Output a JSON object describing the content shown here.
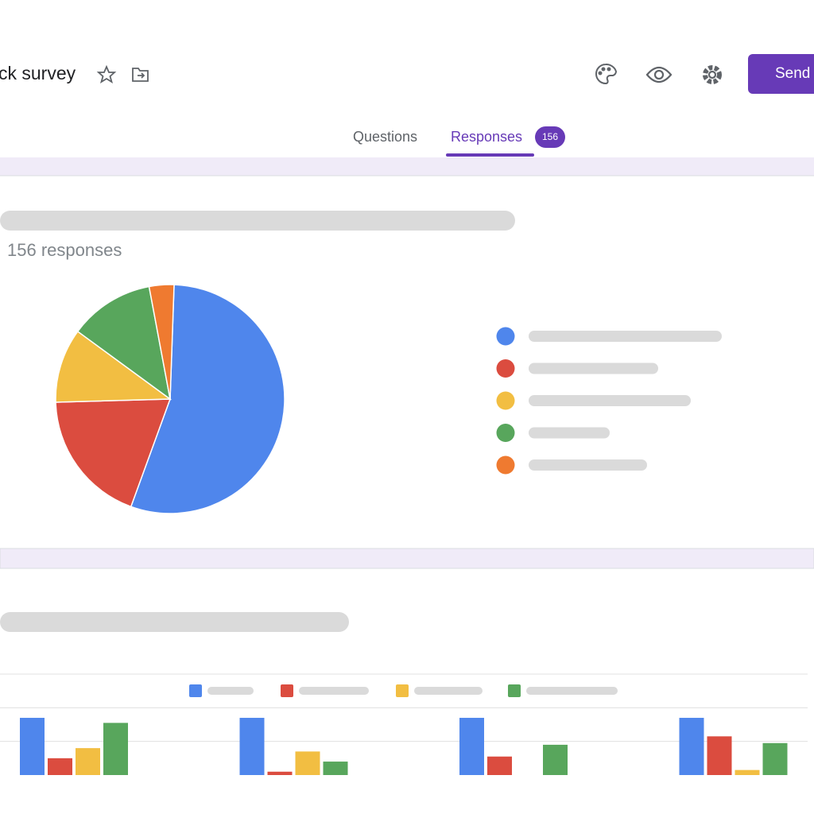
{
  "header": {
    "title": "ck survey",
    "send": "Send"
  },
  "tabs": {
    "questions": "Questions",
    "responses": "Responses",
    "badge": "156"
  },
  "summary": "156 responses",
  "chart_data": [
    {
      "type": "pie",
      "values": [
        55,
        19,
        10.5,
        12,
        3.5
      ],
      "colors": [
        "#4f86ec",
        "#db4c3f",
        "#f2be42",
        "#58a65c",
        "#ef7a30"
      ]
    },
    {
      "type": "bar",
      "categories": [
        null,
        null,
        null,
        null
      ],
      "series": [
        {
          "color": "#4f86ec",
          "values": [
            1.7,
            1.7,
            1.7,
            1.7
          ]
        },
        {
          "color": "#db4c3f",
          "values": [
            0.5,
            0.1,
            0.55,
            1.15
          ]
        },
        {
          "color": "#f2be42",
          "values": [
            0.8,
            0.7,
            0,
            0.15
          ]
        },
        {
          "color": "#58a65c",
          "values": [
            1.55,
            0.4,
            0.9,
            0.95
          ]
        }
      ],
      "ylim": [
        0,
        3
      ],
      "yticks": [
        1,
        2,
        3
      ],
      "grid": true
    }
  ]
}
